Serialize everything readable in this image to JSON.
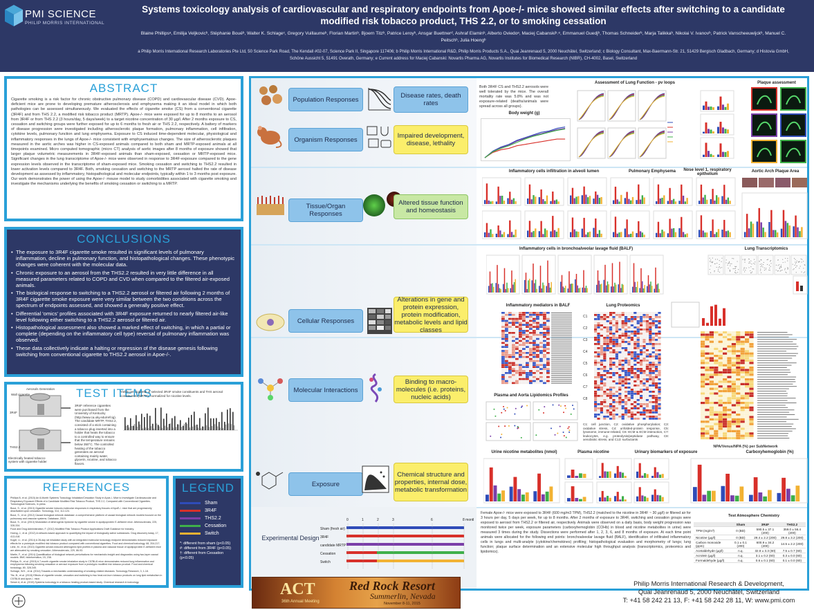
{
  "header": {
    "logo_brand": "PMI SCIENCE",
    "logo_sub": "PHILIP MORRIS INTERNATIONAL",
    "title": "Systems toxicology analysis of cardiovascular and respiratory endpoints from Apoe-/- mice showed similar effects after switching to a candidate modified risk tobacco product, THS 2.2, or to smoking cessation",
    "authors": "Blaine Phillipsᵃ, Emilija Veljkovicᵇ, Stéphanie Bouéᵇ, Walter K. Schlageᶜ, Gregory Vuillaumeᵇ, Florian Martinᵇ, Bjoern Titzᵇ, Patrice Leroyᵇ, Ansgar Buettnerᵈ, Ashraf Elaminᵇ, Alberto Oviedoᵃ, Maciej Cabanskiᵇ˒ᵉ, Emmanuel Guedjᵇ, Thomas Schneiderᵇ, Marja Talikkaᵇ, Nikolai V. Ivanovᵇ, Patrick Vanscheeuwijckᵇ, Manuel C. Peitschᵇ, Julia Hoengᵇ",
    "affiliations": "a Philip Morris International Research Laboratories Pte Ltd, 50 Science Park Road, The Kendall #02-07, Science Park II, Singapore 117406; b Philip Morris International R&D, Philip Morris Products S.A., Quai Jeanrenaud 5, 2000 Neuchâtel, Switzerland; c Biology Consultant, Max-Baermann-Str. 21, 51429 Bergisch Gladbach, Germany; d Histovia GmbH, Schöne Aussicht 5, 51491 Overath, Germany; e Current address for Maciej Cabanski: Novartis Pharma AG, Novartis Institutes for Biomedical Research (NIBR), CH-4002, Basel, Switzerland"
  },
  "abstract": {
    "title": "ABSTRACT",
    "text": "Cigarette smoking is a risk factor for chronic obstructive pulmonary disease (COPD) and cardiovascular disease (CVD). Apoe-deficient mice are prone to developing premature atherosclerosis and emphysema making it an ideal model in which both pathologies can be assessed simultaneously. We evaluated the effects of cigarette smoke (CS) from a conventional cigarette (3R4F) and from THS 2.2, a modified risk tobacco product (MRTP). Apoe-/- mice were exposed for up to 8 months to an aerosol from 3R4F or from THS 2.2 (3 hours/day, 5 days/week) to a target nicotine concentration of 30 µg/l. After 2 months exposure to CS, cessation and switching groups were further exposed for up to 6 months to fresh air or THS 2.2, respectively. A battery of markers of disease progression were investigated including atherosclerotic plaque formation, pulmonary inflammation, cell infiltration, cytokine levels, pulmonary function and lung emphysema. Exposure to CS induced time-dependent molecular, physiological and inflammatory responses in the lungs of Apoe-/- mice consistent with emphysematous changes. The size of atherosclerotic plaques measured in the aortic arches was higher in CS-exposed animals compared to both sham and MRTP-exposed animals at all timepoints examined. Micro computed tomographic (micro CT) analysis of aortic images after 8 months of exposure showed that larger plaque volumetric measurements in 3R4F-exposed animals than sham-exposed, cessation or MRTP-exposed mice. Significant changes in the lung transcriptome of Apoe-/- mice were observed in response to 3R4F-exposure compared to the gene expression levels observed in the transcriptome of sham-exposed mice. Smoking cessation and switching to THS2.2 resulted in lower activation levels compared to 3R4F. Both, smoking cessation and switching to the MRTP aerosol halted the rate of disease development as assessed by inflammatory, histopathological and molecular endpoints, typically within 1 to 3 months post exposure. Our work demonstrates the power of using the Apoe-/- mouse model to study comorbidities associated with cigarette smoking and investigate the mechanisms underlying the benefits of smoking cessation or switching to a MRTP."
  },
  "conclusions": {
    "title": "CONCLUSIONS",
    "items": [
      "The exposure to 3R4F cigarette smoke resulted in significant levels of pulmonary inflammation, decline in pulmonary function, and histopathological changes. These phenotypic changes were coherent with the molecular data.",
      "Chronic exposure to an aerosol from the THS2.2 resulted in very little difference in all measured parameters related to COPD and CVD when compared to the filtered air-exposed animals.",
      "The biological response to switching to a THS2.2 aerosol or filtered air following 2 months of 3R4F cigarette smoke exposure were very similar between the two conditions across the spectrum of endpoints assessed, and showed a generally positive effect.",
      "Differential 'omics' profiles associated with 3R4F exposure returned to nearly filtered air-like level following either switching to a THS2.2 aerosol or filtered air.",
      "Histopathological assessment also showed a marked effect of switching, in which a partial or complete (depending on the inflammatory cell type) reversal of pulmonary inflammation was observed.",
      "These data collectively indicate a halting or regression of the disease genesis following switching from conventional cigarette to THS2.2 aerosol in Apoe-/-."
    ]
  },
  "test_items": {
    "title": "TEST ITEMS",
    "label_aerosol": "Aerosols Generation",
    "label_3r4f": "3R4F",
    "label_ths": "THS2.2",
    "label_wall": "Wall cigarette",
    "label_heated": "Electrically heated tobacco system with cigarette holder",
    "text": "3R4F reference cigarettes were purchased from the University of Kentucky (http://www.ca.uky.edu/refcig). The candidate MRTP, THS2.2, consisted of a stick containing a tobacco plug inserted into a holder that heats the tobacco to a controlled way to ensure that the temperature remains below 350°C. The controlled heating of the tobacco generates an aerosol containing mainly water, glycerin, nicotine, and tobacco flavors.",
    "chart_title": "Yields per cigarette of selected 3R4F smoke constituents and THS aerosol constituents (MRTP), normalized for nicotine levels."
  },
  "references": {
    "title": "REFERENCES",
    "items": [
      "Phillips B, et al. (2015) An 8-Month Systems Toxicology Inhalation/Cessation Study in Apoe-/- Mice to Investigate Cardiovascular and Respiratory Exposure Effects of a Candidate Modified Risk Tobacco Product, THS 2.2, Compared with Conventional Cigarettes. Toxicological Sciences, in press.",
      "Boue, S., et al. (2013) Cigarette smoke induces molecular responses in respiratory tissues of ApoE-/- mice that are progressively deactivated upon cessation. Toxicology, 314, 112-124.",
      "Boue, S., et al. (2012) Causal biological network database: a comprehensive platform of causal biological network models focused on the pulmonary and vascular systems. Database, 2015.",
      "Boue, S., et al. (2013) Modulation of atherogenic lipidome by cigarette smoke in apolipoprotein E-deficient mice. Atherosclerosis, 225, 328-334.",
      "Food and Drug Administration, F. (2012) Modified Risk Tobacco Product Applications Draft Guidance for Industry.",
      "Hoeng, J., et al. (2012) A network-based approach to quantifying the impact of biologically active substances. Drug discovery today, 17, 413-418.",
      "Kogel, U., et al. (2014) A 28-day rat inhalation study with an integrated molecular toxicology endpoint demonstrates reduced exposure effects for a prototypic modified risk tobacco product compared with conventional cigarettes. Food and chemical toxicology, 68, 204-217.",
      "Lietz, M., et al. (2013) Cigarette-smoke-induced atherogenic lipid profiles in plasma and vascular tissue of apolipoprotein E-deficient mice are attenuated by smoking cessation. Atherosclerosis, 229, 86-93.",
      "Martin, F., et al. (2014) Quantification of biological network perturbations for mechanistic insight and diagnostics using two-layer causal models. BMC bioinformatics, 15, 238.",
      "Phillips, B., et al. (2015) A 7-month cigarette smoke inhalation study in C57BL/6 mice demonstrates reduced lung inflammation and emphysema following smoking cessation or aerosol exposure from a prototypic modified risk tobacco product. Food and chemical toxicology, 80, 328-345.",
      "Schlage, W.K., et al. (2014) Towards a mechanistic understanding of smoking-related diseases. Toxicology Research, 3, 1-18.",
      "Titz, B., et al. (2015) Effects of cigarette smoke, cessation and switching to two heat-not-burn tobacco products on lung lipid metabolism in C57BL/6 and Apoe-/- mice.",
      "Sewer A, et al. (2015) Systems toxicology in a tobacco heating product-based study. Chemical research in toxicology."
    ]
  },
  "legend": {
    "title": "LEGEND",
    "items": [
      {
        "label": "Sham",
        "color": "#2f4cb8"
      },
      {
        "label": "3R4F",
        "color": "#d8302a"
      },
      {
        "label": "THS2.2",
        "color": "#7a3fa8"
      },
      {
        "label": "Cessation",
        "color": "#3fb04a"
      },
      {
        "label": "Switch",
        "color": "#f2b233"
      }
    ],
    "notes": [
      "*: different from sham (p<0.05)",
      "#: different from 3R4F (p<0.05)",
      "†: different from Cessation (p<0.05)"
    ]
  },
  "flow": {
    "levels": [
      {
        "label": "Population Responses",
        "outcome": "Disease rates, death rates"
      },
      {
        "label": "Organism Responses",
        "outcome": "Impaired development, disease, lethality"
      },
      {
        "label": "Tissue/Organ Responses",
        "outcome": "Altered tissue function and homeostasis"
      },
      {
        "label": "Cellular Responses",
        "outcome": "Alterations in gene and protein expression, protein modification, metabolic levels and lipid classes"
      },
      {
        "label": "Molecular Interactions",
        "outcome": "Binding to macro-molecules (i.e. proteins, nucleic acids)"
      },
      {
        "label": "Exposure",
        "outcome": "Chemical structure and properties, internal dose, metabolic transformation"
      }
    ],
    "experimental_design": "Experimental Design"
  },
  "results": {
    "organism_note": "Both 3R4F CS and THS2.2 aerosols were well tolerated by the mice. The overall mortality rate was 5.8% and was not exposure-related (deaths/animals were spread across all groups).",
    "body_weight_title": "Body weight (g)",
    "lung_function_title": "Assessment of Lung Function - pv loops",
    "plaque_title": "Plaque assessment",
    "bal_title": "Inflammatory cells infiltration in alveoli lumen",
    "emphysema_title": "Pulmonary Emphysema",
    "nose_title": "Nose level 1, respiratory epithelium",
    "aortic_title": "Aortic Arch Plaque Area",
    "balf_title": "Inflammatory cells in bronchoalveolar lavage fluid (BALF)",
    "transcriptomics_title": "Lung Transcriptomics",
    "mediators_title": "Inflammatory mediators in BALF",
    "proteomics_title": "Lung Proteomics",
    "lipidomics_title": "Plasma and Aorta Lipidomics Profiles",
    "clusters_note": "C1: cell junction, C2: oxidative phosphorylation; C3: oxidative stress, C4: unfolded-protein response, C5: lysosome, immune-related, C6: ECM & ECM interaction, C7: leukocytes, e.g. proteolysis/peptidase pathway, C8: xenobiotic stress, and C13: surfactants",
    "npa_label": "NPA/Venus/NPA (%) per SubNetwork",
    "urine_title": "Urine nicotine metabolites (nmol)",
    "plasma_title": "Plasma nicotine",
    "urinary_title": "Urinary biomarkers of exposure",
    "cohb_title": "Carboxyhemoglobin (%)",
    "design_text": "Female Apoe-/- mice were exposed to 3R4F (600 mg/m3 TPM), THS2.2 (matched to the nicotine in 3R4F ~ 30 µg/l) or filtered air for 3 hours per day, 5 days per week, for up to 8 months. After 2 months of exposure to 3R4F, switching and cessation groups were exposed to aerosol from THS2.2 or filtered air, respectively. Animals were observed on a daily basis, body weight progression was monitored twice per week, exposure parameters (carboxyhemoglobin (COHb) in blood and nicotine metabolites in urine) were measured 3 times during the study. Dissections were performed after 1, 2, 3, 6, and 8 months of exposure. At each time point animals were allocated for the following end points: bronchoalveolar lavage fluid (BALF), identification of infiltrated inflammatory cells in lungs and multi-analyte (cytokine/chemokines) profiling; histopathological evaluation and morphometry of lungs; lung function; plaque surface determination and an extensive molecular high throughput analysis (transcriptomics, proteomics and lipidomics).",
    "design_groups": [
      "Sham (fresh air)",
      "3R4F",
      "candidate MRTP",
      "Cessation",
      "Switch"
    ],
    "design_months": [
      "0",
      "1",
      "2",
      "3",
      "6",
      "8 months"
    ],
    "chem_title": "Test Atmosphere Chemistry",
    "chem_headers": [
      "",
      "Sham",
      "3R4F",
      "THS2.2"
    ],
    "chem_rows": [
      [
        "TPM (mg/m³)",
        "0 (BD)",
        "590.5 ± 37.1 (200)",
        "359.0 ± 56.4 (200)"
      ],
      [
        "Nicotine (µg/l)",
        "0 (BD)",
        "29.4 ± 2.2 (200)",
        "29.8 ± 3.2 (200)"
      ],
      [
        "Carbon monoxide (ppm)",
        "0.1 ± 0.1 (200)",
        "600.9 ± 34.2 (200)",
        "14.5 ± 2.2 (200)"
      ],
      [
        "Acetaldehyde (µg/l)",
        "n.q.",
        "32.8 ± 3.3 (60)",
        "7.5 ± 0.7 (60)"
      ],
      [
        "Acrolein (µg/l)",
        "n.q.",
        "3.1 ± 0.2 (60)",
        "0.3 ± 0.0 (60)"
      ],
      [
        "Formaldehyde (µg/l)",
        "n.q.",
        "0.6 ± 0.1 (60)",
        "0.1 ± 0.0 (60)"
      ]
    ]
  },
  "footer": {
    "banner_act": "ACT",
    "banner_resort": "Red Rock Resort",
    "banner_city": "Summerlin, Nevada",
    "banner_meeting": "36th Annual Meeting",
    "banner_date": "November 8-11, 2015",
    "contact_1": "Philip Morris International Research & Development,",
    "contact_2": "Quai Jeanrenaud 5, 2000 Neuchâtel, Switzerland",
    "contact_3": "T: +41 58 242 21 13, F: +41 58 242 28 11, W: www.pmi.com"
  },
  "colors": {
    "header_bg": "#2d3866",
    "frame": "#2aa0d8",
    "sham": "#2f4cb8",
    "r3r4f": "#d8302a",
    "ths": "#7a3fa8",
    "cessation": "#3fb04a",
    "switch": "#f2b233"
  }
}
